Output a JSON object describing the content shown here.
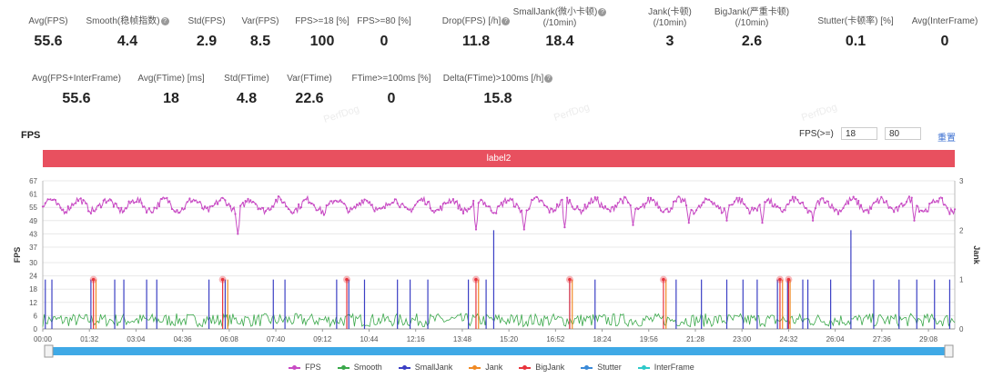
{
  "stats_row1": [
    {
      "label": "Avg(FPS)",
      "value": "55.6",
      "help": false
    },
    {
      "label": "Smooth(稳帧指数)",
      "value": "4.4",
      "help": true
    },
    {
      "label": "Std(FPS)",
      "value": "2.9",
      "help": false
    },
    {
      "label": "Var(FPS)",
      "value": "8.5",
      "help": false
    },
    {
      "label": "FPS>=18 [%]",
      "value": "100",
      "help": false
    },
    {
      "label": "FPS>=80 [%]",
      "value": "0",
      "help": false
    },
    {
      "label": "Drop(FPS) [/h]",
      "value": "11.8",
      "help": true
    },
    {
      "label": "SmallJank(微小卡顿)",
      "label2": "(/10min)",
      "value": "18.4",
      "help": true
    },
    {
      "label": "Jank(卡顿)",
      "label2": "(/10min)",
      "value": "3",
      "help": false
    },
    {
      "label": "BigJank(严重卡顿)",
      "label2": "(/10min)",
      "value": "2.6",
      "help": false
    },
    {
      "label": "Stutter(卡顿率) [%]",
      "value": "0.1",
      "help": false
    },
    {
      "label": "Avg(InterFrame)",
      "value": "0",
      "help": false
    }
  ],
  "stats_row2": [
    {
      "label": "Avg(FPS+InterFrame)",
      "value": "55.6",
      "help": false
    },
    {
      "label": "Avg(FTime) [ms]",
      "value": "18",
      "help": false
    },
    {
      "label": "Std(FTime)",
      "value": "4.8",
      "help": false
    },
    {
      "label": "Var(FTime)",
      "value": "22.6",
      "help": false
    },
    {
      "label": "FTime>=100ms [%]",
      "value": "0",
      "help": false
    },
    {
      "label": "Delta(FTime)>100ms [/h]",
      "value": "15.8",
      "help": true
    }
  ],
  "watermark": "PerfDog",
  "chart_title": "FPS",
  "threshold": {
    "label": "FPS(>=)",
    "low": "18",
    "high": "80",
    "reset_label": "重置"
  },
  "label_bar": "label2",
  "colors": {
    "fps": "#c84bc4",
    "smooth": "#3aa84a",
    "smalljank": "#3b3fc4",
    "jank": "#f08a24",
    "bigjank": "#e8343c",
    "stutter": "#3b8ad8",
    "interframe": "#2ec9c9",
    "label_bar": "#e8505f",
    "slider": "#3fa9e6"
  },
  "chart_data": {
    "type": "line",
    "xlabel": "",
    "ylabel": "FPS",
    "y2label": "Jank",
    "ylim": [
      0,
      67
    ],
    "y_ticks": [
      0,
      6,
      12,
      18,
      24,
      30,
      37,
      43,
      49,
      55,
      61,
      67
    ],
    "y2lim": [
      0,
      3
    ],
    "y2_ticks": [
      0,
      1,
      2,
      3
    ],
    "x_ticks": [
      "00:00",
      "01:32",
      "03:04",
      "04:36",
      "06:08",
      "07:40",
      "09:12",
      "10:44",
      "12:16",
      "13:48",
      "15:20",
      "16:52",
      "18:24",
      "19:56",
      "21:28",
      "23:00",
      "24:32",
      "26:04",
      "27:36",
      "29:08"
    ],
    "duration_s": 1800,
    "grid": true,
    "legend_position": "bottom",
    "series": [
      {
        "name": "FPS",
        "baseline": 56,
        "dips": [
          {
            "t": 385,
            "v": 43
          },
          {
            "t": 556,
            "v": 50
          },
          {
            "t": 855,
            "v": 45
          },
          {
            "t": 950,
            "v": 45
          },
          {
            "t": 1030,
            "v": 46
          },
          {
            "t": 1165,
            "v": 47
          },
          {
            "t": 1275,
            "v": 48
          },
          {
            "t": 1350,
            "v": 49
          },
          {
            "t": 1420,
            "v": 48
          },
          {
            "t": 1520,
            "v": 49
          },
          {
            "t": 1720,
            "v": 49
          },
          {
            "t": 1790,
            "v": 52
          }
        ]
      },
      {
        "name": "Smooth",
        "baseline": 4,
        "range": [
          1,
          7
        ]
      },
      {
        "name": "SmallJank",
        "axis": "y2",
        "events": [
          {
            "t": 5,
            "v": 1
          },
          {
            "t": 18,
            "v": 1
          },
          {
            "t": 95,
            "v": 1
          },
          {
            "t": 142,
            "v": 1
          },
          {
            "t": 160,
            "v": 1
          },
          {
            "t": 205,
            "v": 1
          },
          {
            "t": 225,
            "v": 1
          },
          {
            "t": 328,
            "v": 1
          },
          {
            "t": 360,
            "v": 1
          },
          {
            "t": 455,
            "v": 1
          },
          {
            "t": 478,
            "v": 1
          },
          {
            "t": 580,
            "v": 1
          },
          {
            "t": 604,
            "v": 1
          },
          {
            "t": 635,
            "v": 1
          },
          {
            "t": 700,
            "v": 1
          },
          {
            "t": 725,
            "v": 1
          },
          {
            "t": 760,
            "v": 1
          },
          {
            "t": 840,
            "v": 1
          },
          {
            "t": 875,
            "v": 1
          },
          {
            "t": 890,
            "v": 2
          },
          {
            "t": 1040,
            "v": 1
          },
          {
            "t": 1090,
            "v": 1
          },
          {
            "t": 1250,
            "v": 1
          },
          {
            "t": 1300,
            "v": 1
          },
          {
            "t": 1350,
            "v": 1
          },
          {
            "t": 1382,
            "v": 1
          },
          {
            "t": 1410,
            "v": 1
          },
          {
            "t": 1450,
            "v": 1
          },
          {
            "t": 1470,
            "v": 1
          },
          {
            "t": 1500,
            "v": 1
          },
          {
            "t": 1510,
            "v": 1
          },
          {
            "t": 1555,
            "v": 1
          },
          {
            "t": 1595,
            "v": 2
          },
          {
            "t": 1640,
            "v": 1
          },
          {
            "t": 1690,
            "v": 1
          },
          {
            "t": 1725,
            "v": 1
          },
          {
            "t": 1760,
            "v": 1
          },
          {
            "t": 1790,
            "v": 1
          }
        ]
      },
      {
        "name": "Jank",
        "axis": "y2",
        "events": [
          {
            "t": 105,
            "v": 1
          },
          {
            "t": 365,
            "v": 1
          },
          {
            "t": 860,
            "v": 1
          },
          {
            "t": 1045,
            "v": 1
          },
          {
            "t": 1230,
            "v": 1
          },
          {
            "t": 1460,
            "v": 1
          },
          {
            "t": 1475,
            "v": 1
          }
        ]
      },
      {
        "name": "BigJank",
        "axis": "y2",
        "events": [
          {
            "t": 100,
            "v": 1
          },
          {
            "t": 355,
            "v": 1
          },
          {
            "t": 600,
            "v": 1
          },
          {
            "t": 855,
            "v": 1
          },
          {
            "t": 1040,
            "v": 1
          },
          {
            "t": 1225,
            "v": 1
          },
          {
            "t": 1455,
            "v": 1
          },
          {
            "t": 1472,
            "v": 1
          }
        ]
      },
      {
        "name": "Stutter",
        "axis": "y2",
        "events": []
      },
      {
        "name": "InterFrame",
        "axis": "y2",
        "events": []
      }
    ]
  }
}
